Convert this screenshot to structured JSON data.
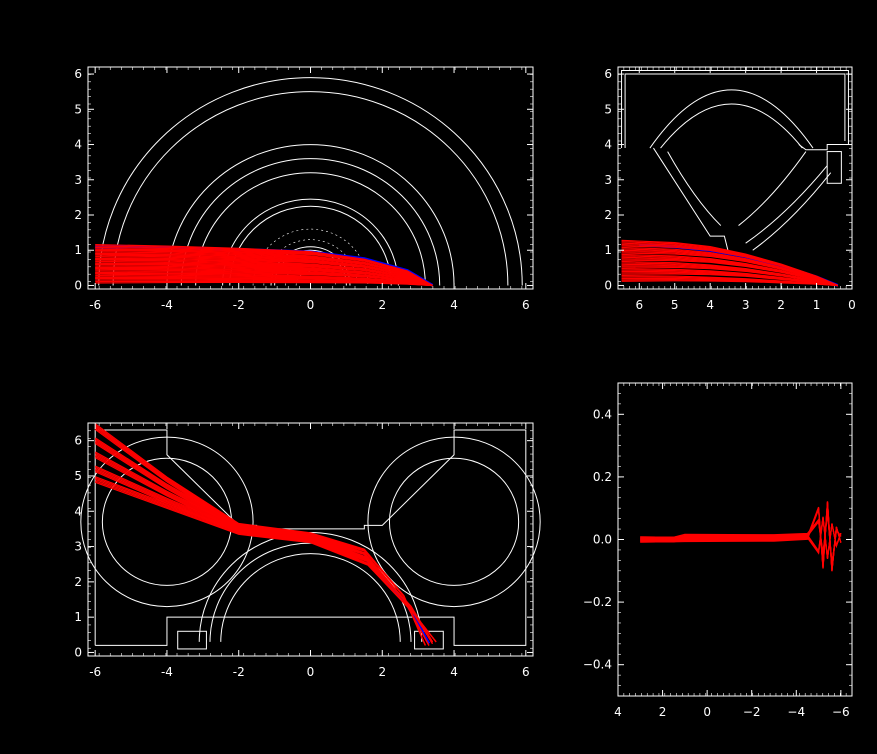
{
  "chart_data": [
    {
      "id": "top-left",
      "type": "line",
      "title": "",
      "xlabel": "",
      "ylabel": "",
      "xlim": [
        -6.2,
        6.2
      ],
      "ylim": [
        -0.1,
        6.2
      ],
      "xticks": [
        "-6",
        "-4",
        "-2",
        "0",
        "2",
        "4",
        "6"
      ],
      "xtick_values": [
        -6,
        -4,
        -2,
        0,
        2,
        4,
        6
      ],
      "yticks": [
        "0",
        "1",
        "2",
        "3",
        "4",
        "5",
        "6"
      ],
      "ytick_values": [
        0,
        1,
        2,
        3,
        4,
        5,
        6
      ],
      "grid": false,
      "colors": {
        "structure": "#ffffff",
        "trajectories": "#ff0000",
        "reference": "#0000ff"
      },
      "structure_arcs": [
        {
          "r": 3.2
        },
        {
          "r": 3.6
        },
        {
          "r": 4.0
        },
        {
          "r": 5.5
        },
        {
          "r": 5.9
        },
        {
          "r": 2.25
        },
        {
          "r": 2.45
        },
        {
          "r": 1.0
        },
        {
          "r": 1.1
        }
      ],
      "series": [
        {
          "x": [
            -6.0,
            -4.0,
            -2.0,
            0.0,
            1.5,
            2.7,
            3.4
          ],
          "y": [
            1.08,
            1.05,
            1.0,
            0.92,
            0.72,
            0.4,
            0.0
          ]
        },
        {
          "x": [
            -6.0,
            -4.0,
            -2.0,
            0.0,
            1.5,
            2.7,
            3.4
          ],
          "y": [
            0.95,
            0.93,
            0.88,
            0.8,
            0.63,
            0.35,
            0.0
          ]
        },
        {
          "x": [
            -6.0,
            -4.0,
            -2.0,
            0.0,
            1.5,
            2.7,
            3.4
          ],
          "y": [
            0.82,
            0.8,
            0.76,
            0.69,
            0.54,
            0.3,
            0.0
          ]
        },
        {
          "x": [
            -6.0,
            -4.0,
            -2.0,
            0.0,
            1.5,
            2.7,
            3.4
          ],
          "y": [
            0.68,
            0.67,
            0.63,
            0.57,
            0.45,
            0.25,
            0.0
          ]
        },
        {
          "x": [
            -6.0,
            -4.0,
            -2.0,
            0.0,
            1.5,
            2.7,
            3.4
          ],
          "y": [
            0.55,
            0.54,
            0.51,
            0.46,
            0.36,
            0.2,
            0.0
          ]
        },
        {
          "x": [
            -6.0,
            -4.0,
            -2.0,
            0.0,
            1.5,
            2.7,
            3.4
          ],
          "y": [
            0.42,
            0.41,
            0.39,
            0.35,
            0.27,
            0.15,
            0.0
          ]
        },
        {
          "x": [
            -6.0,
            -4.0,
            -2.0,
            0.0,
            1.5,
            2.7,
            3.4
          ],
          "y": [
            0.28,
            0.27,
            0.26,
            0.23,
            0.18,
            0.1,
            0.0
          ]
        },
        {
          "x": [
            -6.0,
            -4.0,
            -2.0,
            0.0,
            1.5,
            2.7,
            3.4
          ],
          "y": [
            0.15,
            0.15,
            0.14,
            0.12,
            0.1,
            0.05,
            0.0
          ]
        }
      ],
      "reference_series": {
        "x": [
          -6.0,
          -4.0,
          -2.0,
          0.0,
          1.5,
          2.7,
          3.4
        ],
        "y": [
          1.1,
          1.08,
          1.02,
          0.95,
          0.76,
          0.42,
          0.0
        ]
      }
    },
    {
      "id": "top-right",
      "type": "line",
      "title": "",
      "xlabel": "",
      "ylabel": "",
      "xlim": [
        6.6,
        0.0
      ],
      "ylim": [
        -0.1,
        6.2
      ],
      "xticks": [
        "6",
        "5",
        "4",
        "3",
        "2",
        "1",
        "0"
      ],
      "xtick_values": [
        6,
        5,
        4,
        3,
        2,
        1,
        0
      ],
      "yticks": [
        "0",
        "1",
        "2",
        "3",
        "4",
        "5",
        "6"
      ],
      "ytick_values": [
        0,
        1,
        2,
        3,
        4,
        5,
        6
      ],
      "grid": false,
      "colors": {
        "structure": "#ffffff",
        "trajectories": "#ff0000",
        "reference": "#0000ff"
      },
      "series": [
        {
          "x": [
            6.5,
            5.0,
            4.0,
            3.0,
            2.0,
            1.0,
            0.4
          ],
          "y": [
            1.2,
            1.15,
            1.05,
            0.85,
            0.58,
            0.25,
            0.0
          ]
        },
        {
          "x": [
            6.5,
            5.0,
            4.0,
            3.0,
            2.0,
            1.0,
            0.4
          ],
          "y": [
            1.0,
            0.96,
            0.88,
            0.72,
            0.49,
            0.21,
            0.0
          ]
        },
        {
          "x": [
            6.5,
            5.0,
            4.0,
            3.0,
            2.0,
            1.0,
            0.4
          ],
          "y": [
            0.8,
            0.77,
            0.71,
            0.58,
            0.4,
            0.17,
            0.0
          ]
        },
        {
          "x": [
            6.5,
            5.0,
            4.0,
            3.0,
            2.0,
            1.0,
            0.4
          ],
          "y": [
            0.6,
            0.58,
            0.53,
            0.44,
            0.3,
            0.13,
            0.0
          ]
        },
        {
          "x": [
            6.5,
            5.0,
            4.0,
            3.0,
            2.0,
            1.0,
            0.4
          ],
          "y": [
            0.4,
            0.39,
            0.36,
            0.3,
            0.2,
            0.09,
            0.0
          ]
        },
        {
          "x": [
            6.5,
            5.0,
            4.0,
            3.0,
            2.0,
            1.0,
            0.4
          ],
          "y": [
            0.2,
            0.2,
            0.18,
            0.15,
            0.1,
            0.05,
            0.0
          ]
        }
      ],
      "reference_series": {
        "x": [
          6.0,
          5.0,
          4.0,
          3.0,
          2.0,
          1.0,
          0.4
        ],
        "y": [
          1.15,
          1.1,
          1.0,
          0.82,
          0.56,
          0.24,
          0.0
        ]
      }
    },
    {
      "id": "bottom-left",
      "type": "line",
      "title": "",
      "xlabel": "",
      "ylabel": "",
      "xlim": [
        -6.2,
        6.2
      ],
      "ylim": [
        -0.1,
        6.5
      ],
      "xticks": [
        "-6",
        "-4",
        "-2",
        "0",
        "2",
        "4",
        "6"
      ],
      "xtick_values": [
        -6,
        -4,
        -2,
        0,
        2,
        4,
        6
      ],
      "yticks": [
        "0",
        "1",
        "2",
        "3",
        "4",
        "5",
        "6"
      ],
      "ytick_values": [
        0,
        1,
        2,
        3,
        4,
        5,
        6
      ],
      "grid": false,
      "colors": {
        "structure": "#ffffff",
        "trajectories": "#ff0000",
        "reference": "#0000ff"
      },
      "series": [
        {
          "x": [
            -6.0,
            -4.0,
            -2.0,
            0.0,
            1.5,
            2.6,
            3.2
          ],
          "y": [
            6.4,
            4.9,
            3.6,
            3.35,
            2.9,
            1.6,
            0.2
          ]
        },
        {
          "x": [
            -6.0,
            -4.0,
            -2.0,
            0.0,
            1.5,
            2.6,
            3.3
          ],
          "y": [
            6.0,
            4.7,
            3.55,
            3.3,
            2.8,
            1.5,
            0.2
          ]
        },
        {
          "x": [
            -6.0,
            -4.0,
            -2.0,
            0.0,
            1.5,
            2.7,
            3.4
          ],
          "y": [
            5.6,
            4.5,
            3.5,
            3.25,
            2.7,
            1.4,
            0.25
          ]
        },
        {
          "x": [
            -6.0,
            -4.0,
            -2.0,
            0.0,
            1.6,
            2.8,
            3.4
          ],
          "y": [
            5.2,
            4.3,
            3.45,
            3.2,
            2.6,
            1.3,
            0.3
          ]
        },
        {
          "x": [
            -6.0,
            -4.0,
            -2.0,
            0.0,
            1.6,
            2.8,
            3.5
          ],
          "y": [
            4.9,
            4.15,
            3.4,
            3.15,
            2.5,
            1.2,
            0.3
          ]
        }
      ],
      "reference_series": {
        "x": [
          -2.0,
          -1.0,
          0.0,
          1.5,
          2.7,
          3.3
        ],
        "y": [
          3.45,
          3.3,
          3.2,
          2.7,
          1.35,
          0.25
        ]
      }
    },
    {
      "id": "bottom-right",
      "type": "line",
      "title": "",
      "xlabel": "",
      "ylabel": "",
      "xlim": [
        4.0,
        -6.5
      ],
      "ylim": [
        -0.5,
        0.5
      ],
      "xticks": [
        "4",
        "2",
        "0",
        "−2",
        "−4",
        "−6"
      ],
      "xtick_values": [
        4,
        2,
        0,
        -2,
        -4,
        -6
      ],
      "yticks": [
        "0.4",
        "0.2",
        "0.0",
        "−0.2",
        "−0.4"
      ],
      "ytick_values": [
        0.4,
        0.2,
        0.0,
        -0.2,
        -0.4
      ],
      "grid": false,
      "colors": {
        "trajectories": "#ff0000",
        "reference": "#0000ff"
      },
      "series": [
        {
          "x": [
            3.0,
            1.5,
            1.0,
            -1.0,
            -3.0,
            -4.5,
            -5.0,
            -5.2,
            -5.4,
            -5.6,
            -5.8,
            -6.0
          ],
          "y": [
            0.0,
            0.0,
            0.01,
            0.01,
            0.01,
            0.015,
            0.06,
            -0.05,
            0.09,
            -0.08,
            0.03,
            0.01
          ]
        },
        {
          "x": [
            3.0,
            1.5,
            1.0,
            -1.0,
            -3.0,
            -4.5,
            -5.0,
            -5.2,
            -5.4,
            -5.6,
            -5.8,
            -6.0
          ],
          "y": [
            0.0,
            0.0,
            0.005,
            0.005,
            0.005,
            0.01,
            -0.04,
            0.07,
            -0.06,
            0.05,
            -0.02,
            0.02
          ]
        },
        {
          "x": [
            3.0,
            1.5,
            1.0,
            -1.0,
            -3.0,
            -4.5,
            -5.0,
            -5.2,
            -5.4,
            -5.6,
            -5.8,
            -6.0
          ],
          "y": [
            0.0,
            0.0,
            0.0,
            0.0,
            0.0,
            0.005,
            0.1,
            -0.09,
            0.12,
            -0.1,
            0.04,
            -0.01
          ]
        }
      ],
      "reference_series": {
        "x": [
          3.0,
          0.0,
          -1.5
        ],
        "y": [
          0.0,
          0.0,
          0.0
        ]
      }
    }
  ]
}
